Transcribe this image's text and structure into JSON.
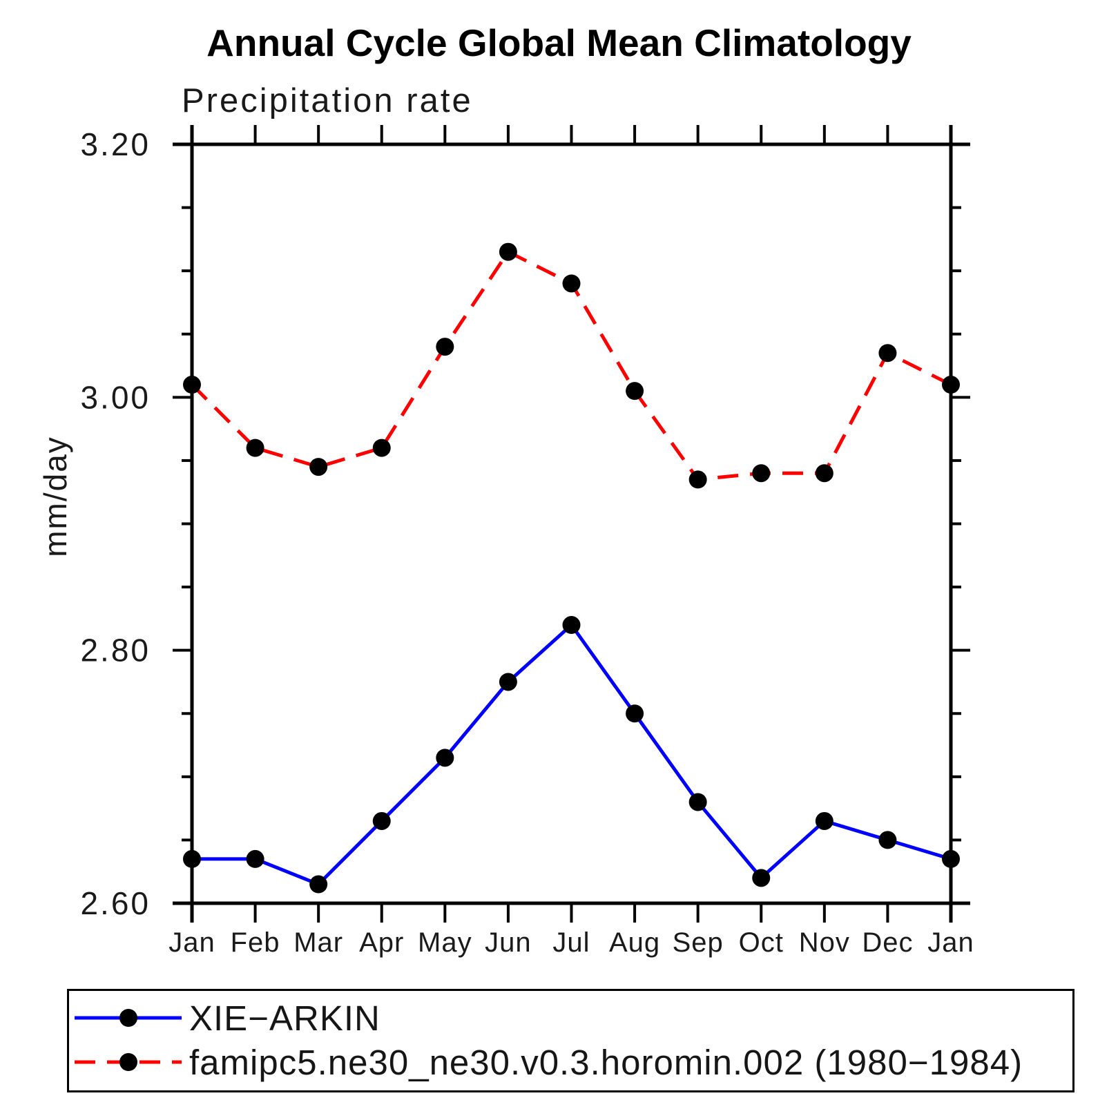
{
  "title": "Annual Cycle Global Mean Climatology",
  "subtitle": "Precipitation rate",
  "ylabel": "mm/day",
  "colors": {
    "background": "#ffffff",
    "axis": "#000000",
    "text": "#1a1a1a",
    "series_blue": "#0000ff",
    "series_red": "#ff0000",
    "marker": "#000000"
  },
  "chart_data": {
    "type": "line",
    "title": "Annual Cycle Global Mean Climatology",
    "subtitle": "Precipitation rate",
    "xlabel": "",
    "ylabel": "mm/day",
    "categories": [
      "Jan",
      "Feb",
      "Mar",
      "Apr",
      "May",
      "Jun",
      "Jul",
      "Aug",
      "Sep",
      "Oct",
      "Nov",
      "Dec",
      "Jan"
    ],
    "ylim": [
      2.6,
      3.2
    ],
    "ytick_major": [
      2.6,
      2.8,
      3.0,
      3.2
    ],
    "ytick_labels": [
      "2.60",
      "2.80",
      "3.00",
      "3.20"
    ],
    "ytick_minor_step": 0.05,
    "grid": false,
    "legend_position": "bottom",
    "series": [
      {
        "name": "XIE−ARKIN",
        "color": "#0000ff",
        "line_style": "solid",
        "marker": "circle",
        "marker_color": "#000000",
        "values": [
          2.635,
          2.635,
          2.615,
          2.665,
          2.715,
          2.775,
          2.82,
          2.75,
          2.68,
          2.62,
          2.665,
          2.65,
          2.635
        ]
      },
      {
        "name": "famipc5.ne30_ne30.v0.3.horomin.002 (1980−1984)",
        "color": "#ff0000",
        "line_style": "dashed",
        "marker": "circle",
        "marker_color": "#000000",
        "values": [
          3.01,
          2.96,
          2.945,
          2.96,
          3.04,
          3.115,
          3.09,
          3.005,
          2.935,
          2.94,
          2.94,
          3.035,
          3.01
        ]
      }
    ]
  }
}
